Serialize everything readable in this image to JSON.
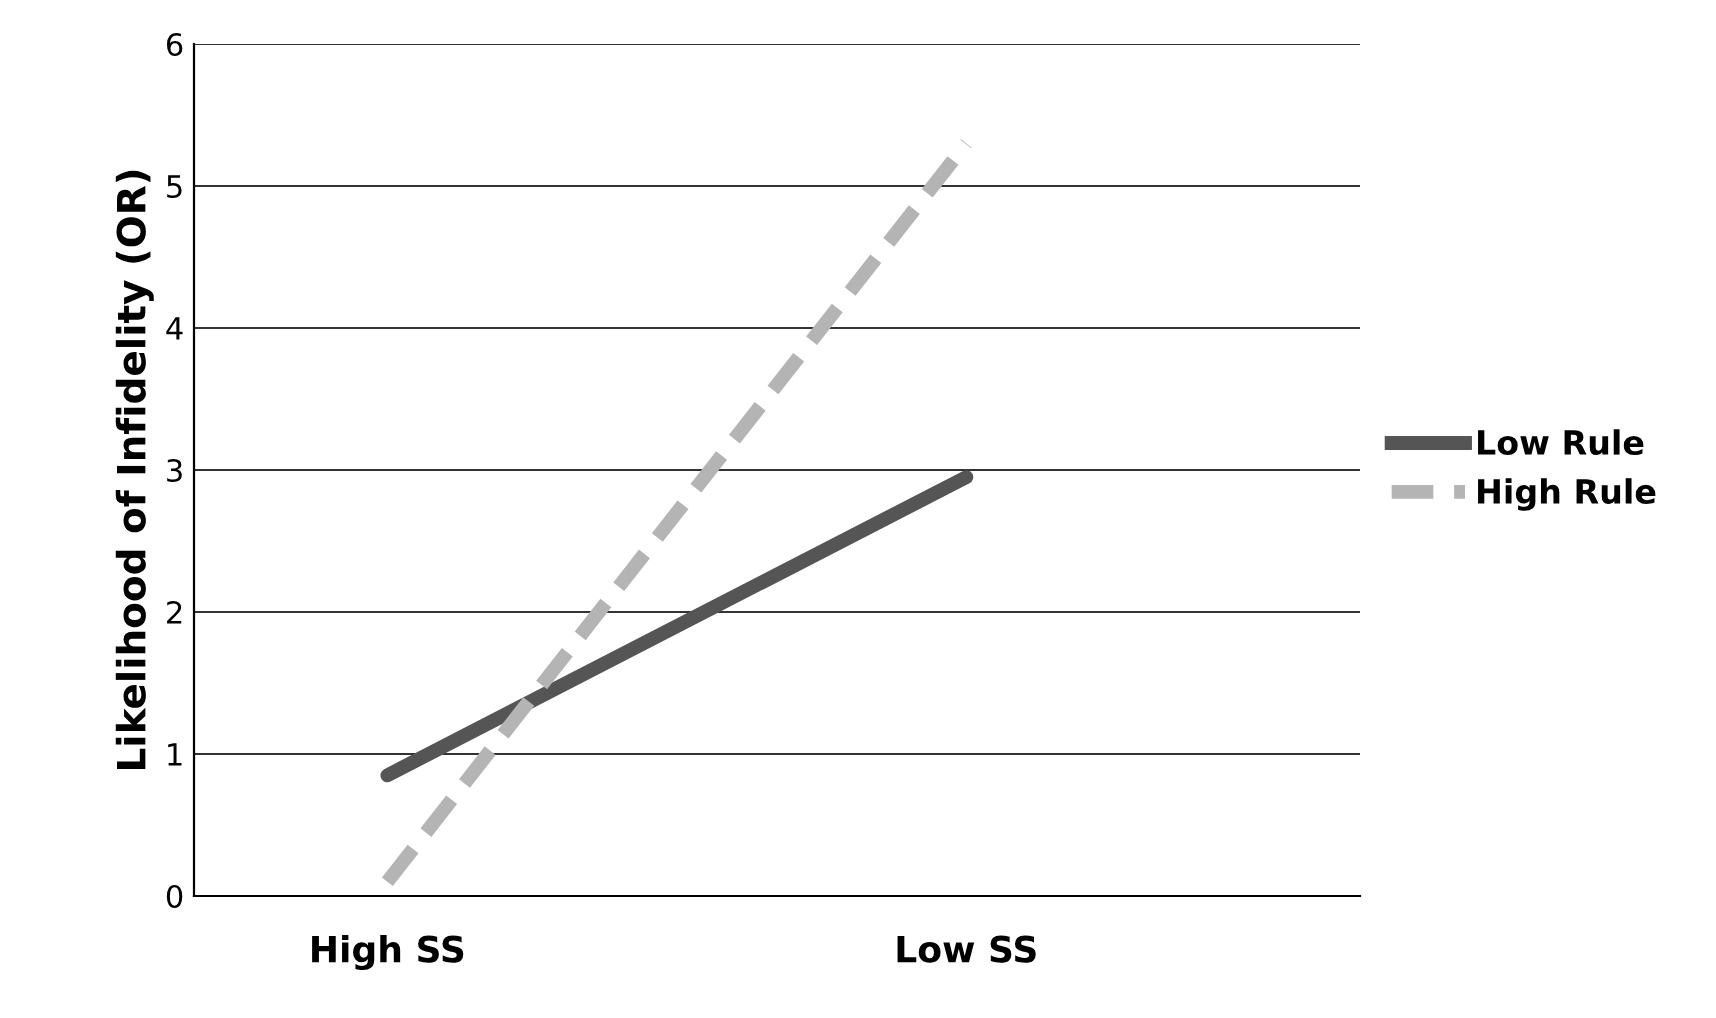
{
  "chart_data": {
    "type": "line",
    "ylabel": "Likelihood of Infidelity (OR)",
    "categories": [
      "High SS",
      "Low SS"
    ],
    "series": [
      {
        "name": "Low Rule",
        "color": "#555555",
        "values": [
          0.85,
          2.95
        ],
        "line_style": "solid"
      },
      {
        "name": "High Rule",
        "color": "#b4b4b4",
        "values": [
          0.1,
          5.3
        ],
        "line_style": "dashed"
      }
    ],
    "ylim": [
      0,
      6
    ],
    "yticks": [
      0,
      1,
      2,
      3,
      4,
      5,
      6
    ],
    "grid": "y",
    "legend": "right",
    "marker": "none"
  }
}
